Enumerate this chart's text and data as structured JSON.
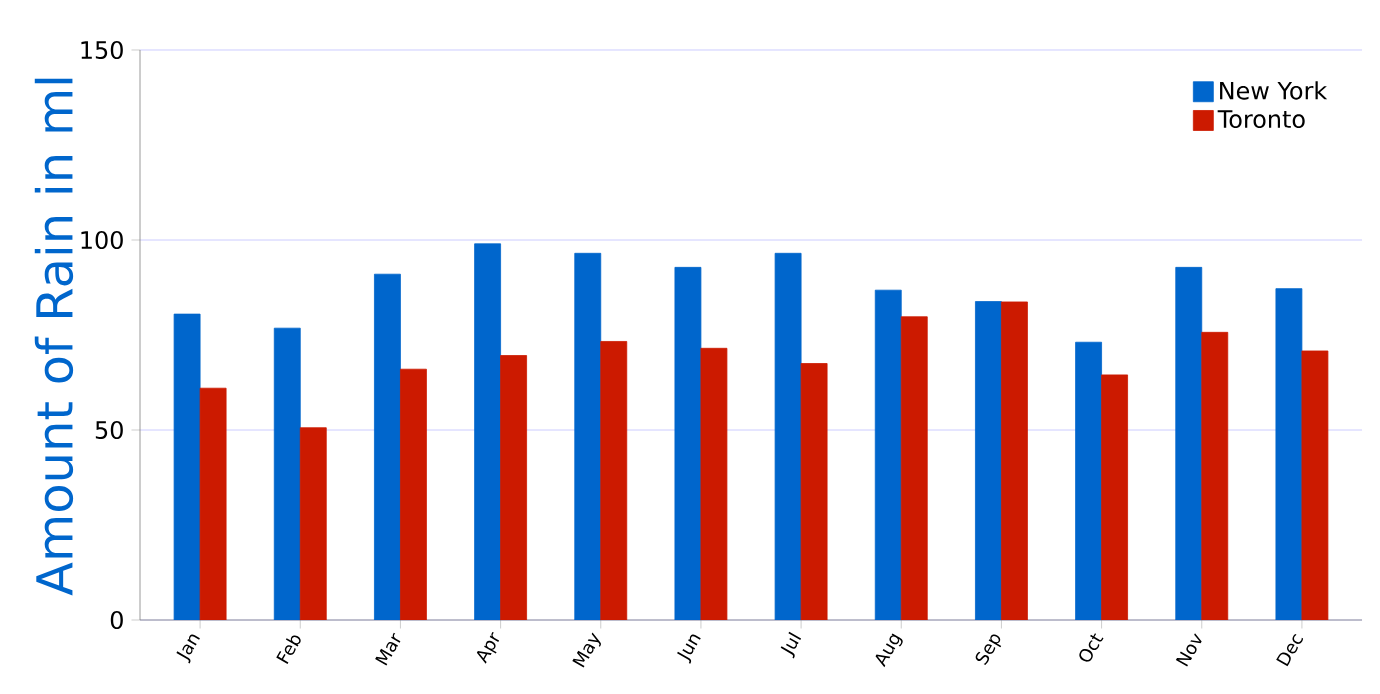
{
  "chart_data": {
    "type": "bar",
    "ylabel": "Amount of Rain in ml",
    "categories": [
      "Jan",
      "Feb",
      "Mar",
      "Apr",
      "May",
      "Jun",
      "Jul",
      "Aug",
      "Sep",
      "Oct",
      "Nov",
      "Dec"
    ],
    "series": [
      {
        "name": "New York",
        "color": "#0066cc",
        "values": [
          80.5,
          76.8,
          91,
          99,
          96.5,
          92.8,
          96.5,
          86.8,
          83.8,
          73.1,
          92.8,
          87.2
        ]
      },
      {
        "name": "Toronto",
        "color": "#cc1a00",
        "values": [
          61,
          50.6,
          66,
          69.6,
          73.3,
          71.5,
          67.5,
          79.8,
          83.7,
          64.5,
          75.7,
          70.8
        ]
      }
    ],
    "ylim": [
      0,
      150
    ],
    "yticks": [
      0,
      50,
      100,
      150
    ],
    "grid": "y",
    "legend": "top right"
  }
}
